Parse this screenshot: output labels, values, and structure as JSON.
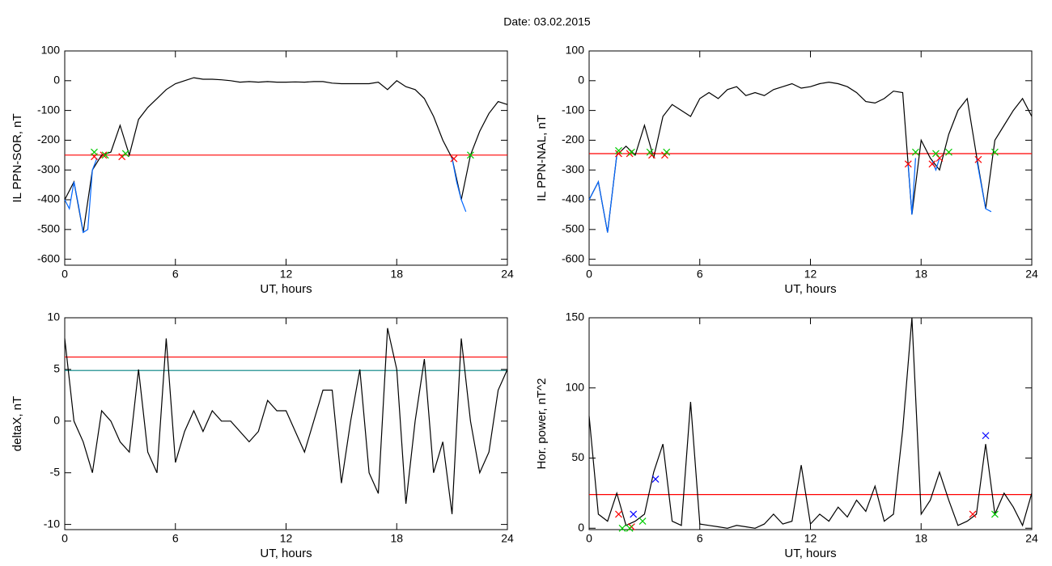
{
  "title": "Date:  03.02.2015",
  "chart_data": [
    {
      "type": "line",
      "ylabel": "IL PPN-SOR, nT",
      "xlabel": "UT, hours",
      "xlim": [
        0,
        24
      ],
      "xticks": [
        0,
        6,
        12,
        18,
        24
      ],
      "ylim": [
        -620,
        100
      ],
      "yticks": [
        -600,
        -500,
        -400,
        -300,
        -200,
        -100,
        0,
        100
      ],
      "hlines": [
        {
          "value": -250,
          "color": "#ff0000"
        }
      ],
      "series": [
        {
          "color": "#000000",
          "x": [
            0,
            0.5,
            1,
            1.5,
            2,
            2.5,
            3,
            3.5,
            4,
            4.5,
            5,
            5.5,
            6,
            6.5,
            7,
            7.5,
            8,
            8.5,
            9,
            9.5,
            10,
            10.5,
            11,
            11.5,
            12,
            12.5,
            13,
            13.5,
            14,
            14.5,
            15,
            15.5,
            16,
            16.5,
            17,
            17.5,
            18,
            18.5,
            19,
            19.5,
            20,
            20.5,
            21,
            21.5,
            22,
            22.5,
            23,
            23.5,
            24
          ],
          "values": [
            -400,
            -340,
            -510,
            -300,
            -250,
            -240,
            -150,
            -250,
            -130,
            -90,
            -60,
            -30,
            -10,
            0,
            10,
            5,
            5,
            3,
            0,
            -5,
            -3,
            -5,
            -3,
            -5,
            -5,
            -4,
            -5,
            -3,
            -3,
            -8,
            -10,
            -10,
            -10,
            -10,
            -5,
            -30,
            0,
            -20,
            -30,
            -60,
            -120,
            -200,
            -260,
            -400,
            -250,
            -170,
            -110,
            -70,
            -80
          ]
        },
        {
          "color": "#0066ff",
          "x": [
            0,
            0.25,
            0.5,
            0.75,
            1,
            1.25,
            1.5,
            1.75,
            2,
            21,
            21.25,
            21.5,
            21.75
          ],
          "values": [
            -400,
            -430,
            -340,
            -420,
            -510,
            -500,
            -300,
            -260,
            null,
            -260,
            -340,
            -400,
            -440
          ]
        },
        {
          "color": "#ff0000",
          "marker": "x",
          "x": [
            1.6,
            2.1,
            3.1,
            21.1
          ],
          "values": [
            -255,
            -250,
            -255,
            -262
          ]
        },
        {
          "color": "#00cc00",
          "marker": "x",
          "x": [
            1.6,
            2.2,
            3.3,
            22
          ],
          "values": [
            -240,
            -250,
            -245,
            -250
          ]
        }
      ]
    },
    {
      "type": "line",
      "ylabel": "IL PPN-NAL, nT",
      "xlabel": "UT, hours",
      "xlim": [
        0,
        24
      ],
      "xticks": [
        0,
        6,
        12,
        18,
        24
      ],
      "ylim": [
        -620,
        100
      ],
      "yticks": [
        -600,
        -500,
        -400,
        -300,
        -200,
        -100,
        0,
        100
      ],
      "hlines": [
        {
          "value": -245,
          "color": "#ff0000"
        }
      ],
      "series": [
        {
          "color": "#000000",
          "x": [
            0,
            0.5,
            1,
            1.5,
            2,
            2.5,
            3,
            3.5,
            4,
            4.5,
            5,
            5.5,
            6,
            6.5,
            7,
            7.5,
            8,
            8.5,
            9,
            9.5,
            10,
            10.5,
            11,
            11.5,
            12,
            12.5,
            13,
            13.5,
            14,
            14.5,
            15,
            15.5,
            16,
            16.5,
            17,
            17.5,
            18,
            18.5,
            19,
            19.5,
            20,
            20.5,
            21,
            21.5,
            22,
            22.5,
            23,
            23.5,
            24
          ],
          "values": [
            -400,
            -340,
            -510,
            -250,
            -220,
            -250,
            -150,
            -260,
            -120,
            -80,
            -100,
            -120,
            -60,
            -40,
            -60,
            -30,
            -20,
            -50,
            -40,
            -50,
            -30,
            -20,
            -10,
            -25,
            -20,
            -10,
            -5,
            -10,
            -20,
            -40,
            -70,
            -75,
            -60,
            -35,
            -40,
            -450,
            -200,
            -260,
            -300,
            -180,
            -100,
            -60,
            -250,
            -430,
            -200,
            -150,
            -100,
            -60,
            -120
          ]
        },
        {
          "color": "#0066ff",
          "x": [
            0,
            0.5,
            1,
            1.5,
            2,
            17.3,
            17.5,
            17.7,
            18,
            18.6,
            18.8,
            19,
            19.2,
            21,
            21.5,
            21.8
          ],
          "values": [
            -400,
            -340,
            -510,
            -250,
            null,
            -280,
            -450,
            -260,
            null,
            -270,
            -300,
            -260,
            null,
            -260,
            -430,
            -440
          ]
        },
        {
          "color": "#ff0000",
          "marker": "x",
          "x": [
            1.6,
            2.2,
            3.4,
            4.1,
            17.3,
            18.6,
            19,
            21.1
          ],
          "values": [
            -245,
            -245,
            -250,
            -250,
            -280,
            -280,
            -260,
            -265
          ]
        },
        {
          "color": "#00cc00",
          "marker": "x",
          "x": [
            1.6,
            2.3,
            3.3,
            4.2,
            17.7,
            18.8,
            19.5,
            22
          ],
          "values": [
            -235,
            -240,
            -240,
            -240,
            -240,
            -245,
            -240,
            -240
          ]
        }
      ]
    },
    {
      "type": "line",
      "ylabel": "deltaX, nT",
      "xlabel": "UT, hours",
      "xlim": [
        0,
        24
      ],
      "xticks": [
        0,
        6,
        12,
        18,
        24
      ],
      "ylim": [
        -10.5,
        10
      ],
      "yticks": [
        -10,
        -5,
        0,
        5,
        10
      ],
      "hlines": [
        {
          "value": 6.2,
          "color": "#ff0000"
        },
        {
          "value": 4.9,
          "color": "#008080"
        }
      ],
      "series": [
        {
          "color": "#000000",
          "x": [
            0,
            0.5,
            1,
            1.5,
            2,
            2.5,
            3,
            3.5,
            4,
            4.5,
            5,
            5.5,
            6,
            6.5,
            7,
            7.5,
            8,
            8.5,
            9,
            9.5,
            10,
            10.5,
            11,
            11.5,
            12,
            12.5,
            13,
            13.5,
            14,
            14.5,
            15,
            15.5,
            16,
            16.5,
            17,
            17.5,
            18,
            18.5,
            19,
            19.5,
            20,
            20.5,
            21,
            21.5,
            22,
            22.5,
            23,
            23.5,
            24
          ],
          "values": [
            8,
            0,
            -2,
            -5,
            1,
            0,
            -2,
            -3,
            5,
            -3,
            -5,
            8,
            -4,
            -1,
            1,
            -1,
            1,
            0,
            0,
            -1,
            -2,
            -1,
            2,
            1,
            1,
            -1,
            -3,
            0,
            3,
            3,
            -6,
            0,
            5,
            -5,
            -7,
            9,
            5,
            -8,
            0,
            6,
            -5,
            -2,
            -9,
            8,
            0,
            -5,
            -3,
            3,
            5
          ]
        }
      ]
    },
    {
      "type": "line",
      "ylabel": "Hor. power, nT^2",
      "xlabel": "UT, hours",
      "xlim": [
        0,
        24
      ],
      "xticks": [
        0,
        6,
        12,
        18,
        24
      ],
      "ylim": [
        -1,
        150
      ],
      "yticks": [
        0,
        50,
        100,
        150
      ],
      "hlines": [
        {
          "value": 24,
          "color": "#ff0000"
        }
      ],
      "series": [
        {
          "color": "#000000",
          "x": [
            0,
            0.5,
            1,
            1.5,
            2,
            2.5,
            3,
            3.5,
            4,
            4.5,
            5,
            5.5,
            6,
            6.5,
            7,
            7.5,
            8,
            8.5,
            9,
            9.5,
            10,
            10.5,
            11,
            11.5,
            12,
            12.5,
            13,
            13.5,
            14,
            14.5,
            15,
            15.5,
            16,
            16.5,
            17,
            17.5,
            18,
            18.5,
            19,
            19.5,
            20,
            20.5,
            21,
            21.5,
            22,
            22.5,
            23,
            23.5,
            24
          ],
          "values": [
            80,
            10,
            5,
            25,
            2,
            5,
            10,
            40,
            60,
            5,
            2,
            90,
            3,
            2,
            1,
            0,
            2,
            1,
            0,
            3,
            10,
            3,
            5,
            45,
            3,
            10,
            5,
            15,
            8,
            20,
            12,
            30,
            5,
            10,
            70,
            150,
            10,
            20,
            40,
            20,
            2,
            5,
            10,
            60,
            10,
            25,
            15,
            2,
            25
          ]
        },
        {
          "color": "#ff0000",
          "marker": "x",
          "x": [
            1.6,
            2.3,
            20.8
          ],
          "values": [
            10,
            1,
            10
          ]
        },
        {
          "color": "#0000ff",
          "marker": "x",
          "x": [
            2.4,
            3.6,
            21.5
          ],
          "values": [
            10,
            35,
            66
          ]
        },
        {
          "color": "#00cc00",
          "marker": "x",
          "x": [
            1.8,
            2.2,
            2.9,
            22
          ],
          "values": [
            0,
            0,
            5,
            10
          ]
        }
      ]
    }
  ]
}
